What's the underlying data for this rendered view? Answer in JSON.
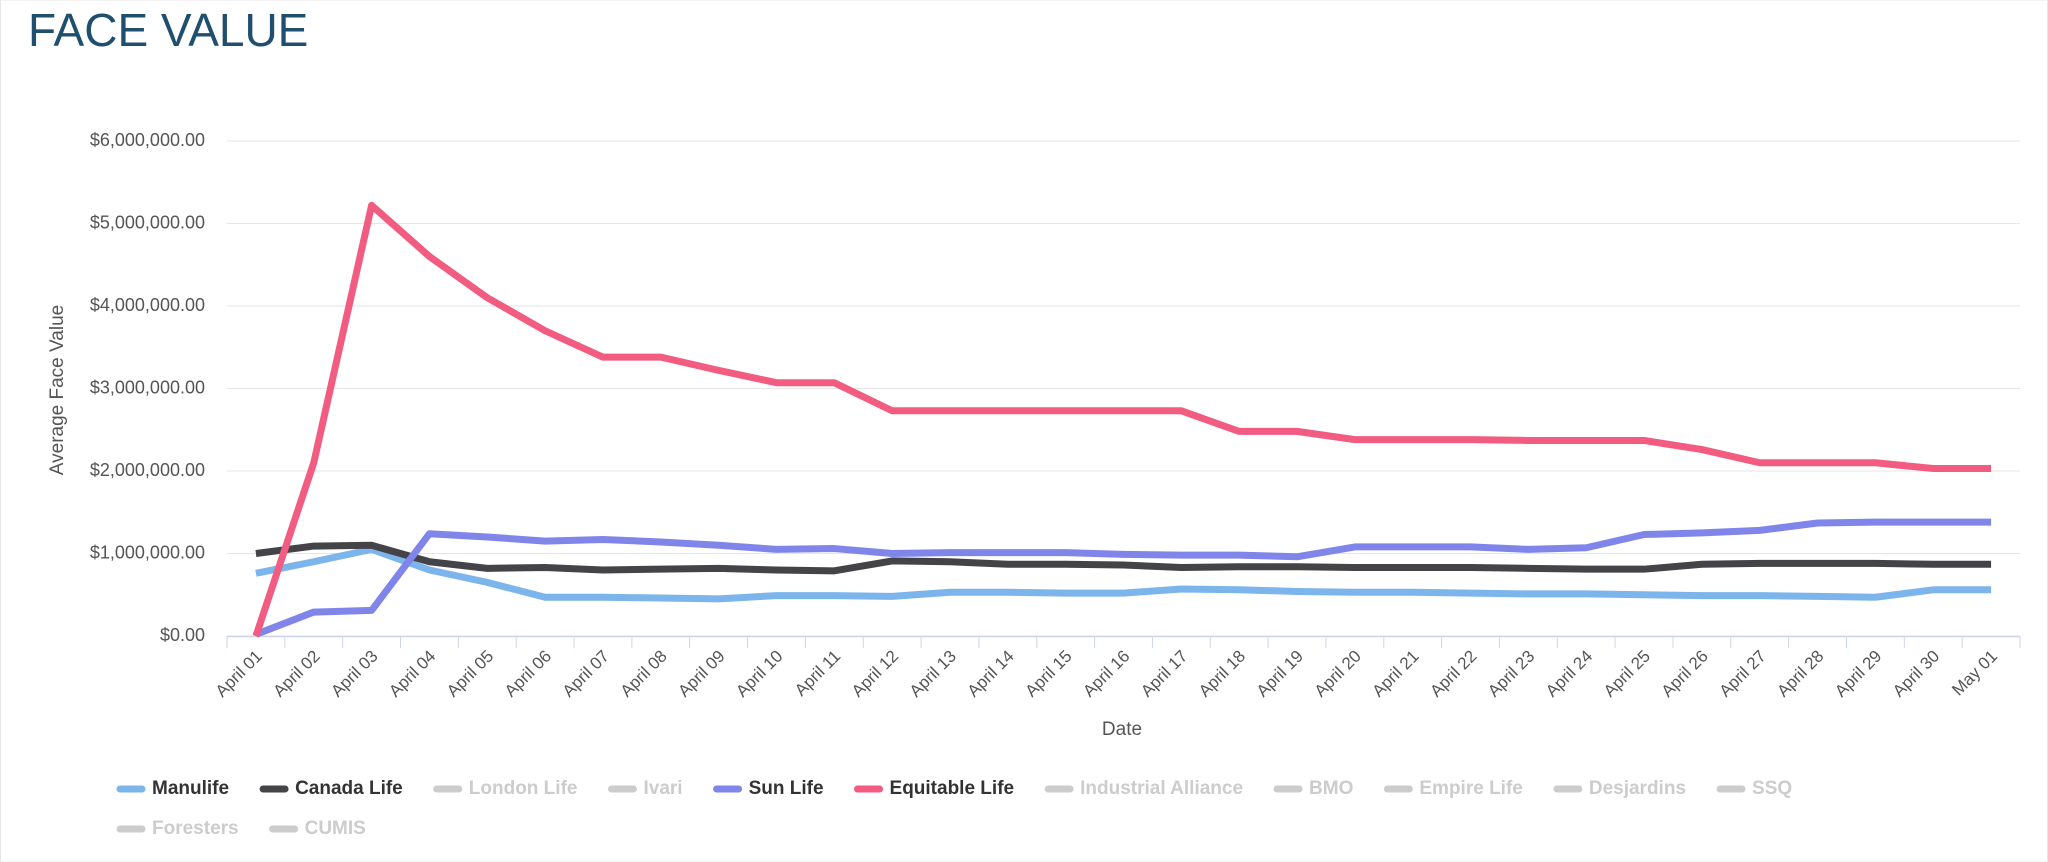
{
  "chart_data": {
    "type": "line",
    "title": "FACE VALUE",
    "x_label": "Date",
    "y_label": "Average Face Value",
    "categories": [
      "April 01",
      "April 02",
      "April 03",
      "April 04",
      "April 05",
      "April 06",
      "April 07",
      "April 08",
      "April 09",
      "April 10",
      "April 11",
      "April 12",
      "April 13",
      "April 14",
      "April 15",
      "April 16",
      "April 17",
      "April 18",
      "April 19",
      "April 20",
      "April 21",
      "April 22",
      "April 23",
      "April 24",
      "April 25",
      "April 26",
      "April 27",
      "April 28",
      "April 29",
      "April 30",
      "May 01"
    ],
    "ylim": [
      0,
      6000000
    ],
    "yticks": [
      {
        "value": 0,
        "label": "$0.00"
      },
      {
        "value": 1000000,
        "label": "$1,000,000.00"
      },
      {
        "value": 2000000,
        "label": "$2,000,000.00"
      },
      {
        "value": 3000000,
        "label": "$3,000,000.00"
      },
      {
        "value": 4000000,
        "label": "$4,000,000.00"
      },
      {
        "value": 5000000,
        "label": "$5,000,000.00"
      },
      {
        "value": 6000000,
        "label": "$6,000,000.00"
      }
    ],
    "grid": true,
    "series": [
      {
        "name": "Manulife",
        "color": "#7cb5ec",
        "visible": true,
        "values": [
          760000,
          900000,
          1050000,
          800000,
          650000,
          470000,
          470000,
          460000,
          450000,
          490000,
          490000,
          480000,
          530000,
          530000,
          520000,
          520000,
          570000,
          560000,
          540000,
          530000,
          530000,
          520000,
          510000,
          510000,
          500000,
          490000,
          490000,
          480000,
          470000,
          560000,
          560000
        ]
      },
      {
        "name": "Canada Life",
        "color": "#434348",
        "visible": true,
        "values": [
          1000000,
          1090000,
          1100000,
          900000,
          820000,
          830000,
          800000,
          810000,
          820000,
          800000,
          790000,
          910000,
          900000,
          870000,
          870000,
          860000,
          830000,
          840000,
          840000,
          830000,
          830000,
          830000,
          820000,
          810000,
          810000,
          870000,
          880000,
          880000,
          880000,
          870000,
          870000
        ]
      },
      {
        "name": "London Life",
        "color": "#cccccc",
        "visible": false,
        "values": [
          null,
          null,
          null,
          null,
          null,
          null,
          null,
          null,
          null,
          null,
          null,
          null,
          null,
          null,
          null,
          null,
          null,
          null,
          null,
          null,
          null,
          null,
          null,
          null,
          null,
          null,
          null,
          null,
          null,
          null,
          null
        ]
      },
      {
        "name": "Ivari",
        "color": "#cccccc",
        "visible": false,
        "values": [
          null,
          null,
          null,
          null,
          null,
          null,
          null,
          null,
          null,
          null,
          null,
          null,
          null,
          null,
          null,
          null,
          null,
          null,
          null,
          null,
          null,
          null,
          null,
          null,
          null,
          null,
          null,
          null,
          null,
          null,
          null
        ]
      },
      {
        "name": "Sun Life",
        "color": "#8085e9",
        "visible": true,
        "values": [
          20000,
          290000,
          310000,
          1240000,
          1200000,
          1150000,
          1170000,
          1140000,
          1100000,
          1050000,
          1060000,
          1000000,
          1010000,
          1010000,
          1010000,
          990000,
          980000,
          980000,
          960000,
          1080000,
          1080000,
          1080000,
          1050000,
          1070000,
          1230000,
          1250000,
          1280000,
          1370000,
          1380000,
          1380000,
          1380000
        ]
      },
      {
        "name": "Equitable Life",
        "color": "#f15c80",
        "visible": true,
        "values": [
          0,
          2100000,
          5220000,
          4600000,
          4100000,
          3700000,
          3380000,
          3380000,
          3220000,
          3070000,
          3070000,
          2730000,
          2730000,
          2730000,
          2730000,
          2730000,
          2730000,
          2480000,
          2480000,
          2380000,
          2380000,
          2380000,
          2370000,
          2370000,
          2370000,
          2260000,
          2100000,
          2100000,
          2100000,
          2030000,
          2030000
        ]
      },
      {
        "name": "Industrial Alliance",
        "color": "#cccccc",
        "visible": false,
        "values": [
          null,
          null,
          null,
          null,
          null,
          null,
          null,
          null,
          null,
          null,
          null,
          null,
          null,
          null,
          null,
          null,
          null,
          null,
          null,
          null,
          null,
          null,
          null,
          null,
          null,
          null,
          null,
          null,
          null,
          null,
          null
        ]
      },
      {
        "name": "BMO",
        "color": "#cccccc",
        "visible": false,
        "values": [
          null,
          null,
          null,
          null,
          null,
          null,
          null,
          null,
          null,
          null,
          null,
          null,
          null,
          null,
          null,
          null,
          null,
          null,
          null,
          null,
          null,
          null,
          null,
          null,
          null,
          null,
          null,
          null,
          null,
          null,
          null
        ]
      },
      {
        "name": "Empire Life",
        "color": "#cccccc",
        "visible": false,
        "values": [
          null,
          null,
          null,
          null,
          null,
          null,
          null,
          null,
          null,
          null,
          null,
          null,
          null,
          null,
          null,
          null,
          null,
          null,
          null,
          null,
          null,
          null,
          null,
          null,
          null,
          null,
          null,
          null,
          null,
          null,
          null
        ]
      },
      {
        "name": "Desjardins",
        "color": "#cccccc",
        "visible": false,
        "values": [
          null,
          null,
          null,
          null,
          null,
          null,
          null,
          null,
          null,
          null,
          null,
          null,
          null,
          null,
          null,
          null,
          null,
          null,
          null,
          null,
          null,
          null,
          null,
          null,
          null,
          null,
          null,
          null,
          null,
          null,
          null
        ]
      },
      {
        "name": "SSQ",
        "color": "#cccccc",
        "visible": false,
        "values": [
          null,
          null,
          null,
          null,
          null,
          null,
          null,
          null,
          null,
          null,
          null,
          null,
          null,
          null,
          null,
          null,
          null,
          null,
          null,
          null,
          null,
          null,
          null,
          null,
          null,
          null,
          null,
          null,
          null,
          null,
          null
        ]
      },
      {
        "name": "Foresters",
        "color": "#cccccc",
        "visible": false,
        "values": [
          null,
          null,
          null,
          null,
          null,
          null,
          null,
          null,
          null,
          null,
          null,
          null,
          null,
          null,
          null,
          null,
          null,
          null,
          null,
          null,
          null,
          null,
          null,
          null,
          null,
          null,
          null,
          null,
          null,
          null,
          null
        ]
      },
      {
        "name": "CUMIS",
        "color": "#cccccc",
        "visible": false,
        "values": [
          null,
          null,
          null,
          null,
          null,
          null,
          null,
          null,
          null,
          null,
          null,
          null,
          null,
          null,
          null,
          null,
          null,
          null,
          null,
          null,
          null,
          null,
          null,
          null,
          null,
          null,
          null,
          null,
          null,
          null,
          null
        ]
      }
    ]
  }
}
